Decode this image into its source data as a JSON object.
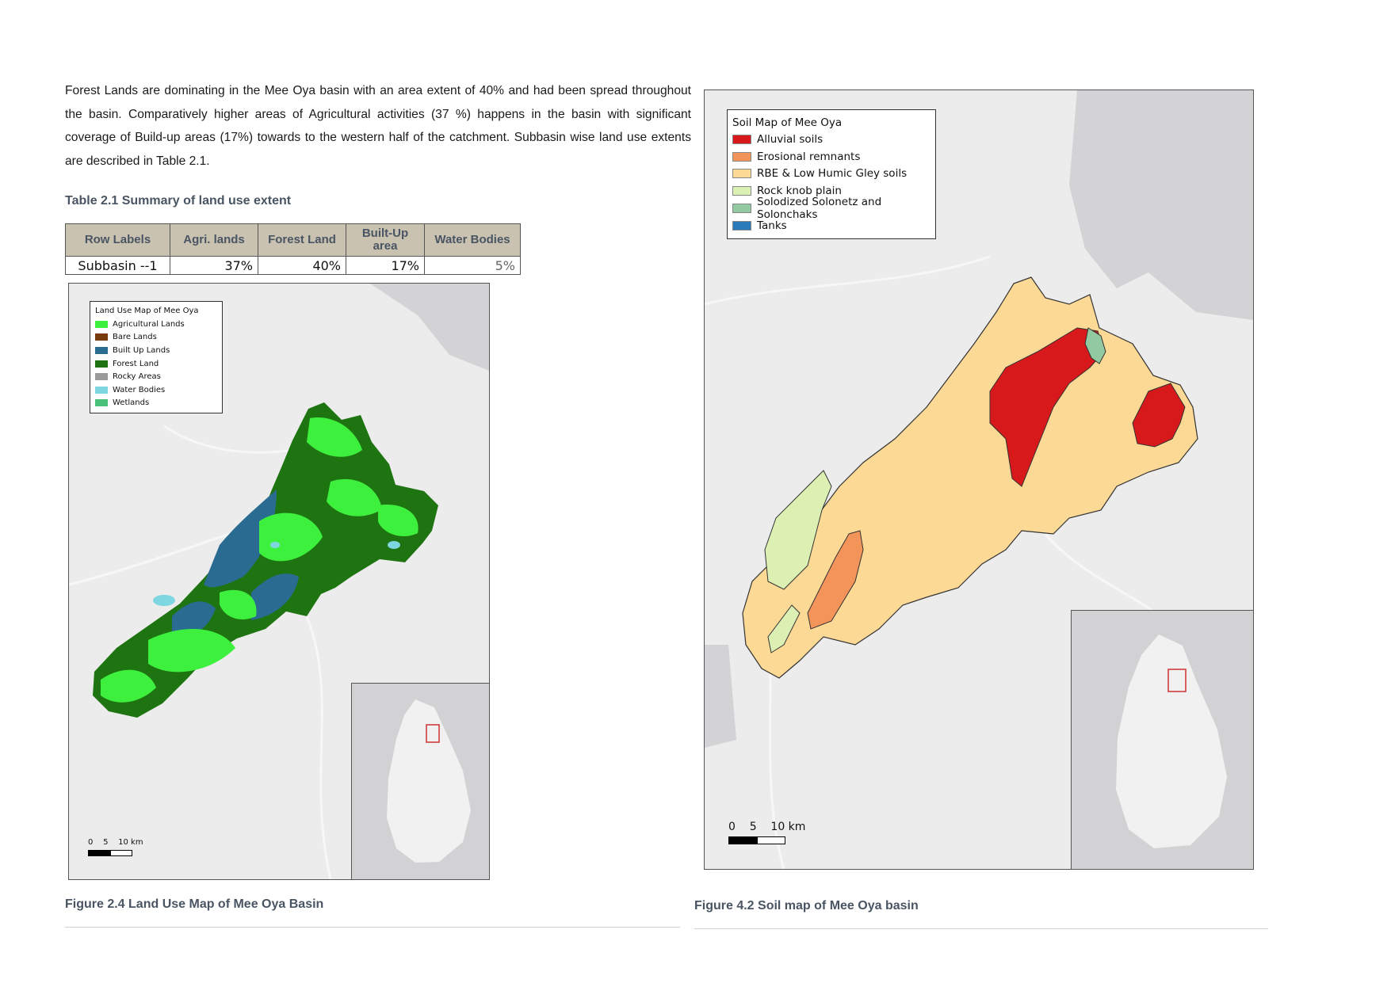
{
  "paragraph": "Forest Lands are dominating in the Mee Oya basin with an area extent of 40% and had been spread throughout the basin. Comparatively higher areas of Agricultural activities (37 %) happens in the basin with significant coverage of Build-up areas (17%) towards to the western half of the catchment. Subbasin wise land use extents are described in Table 2.1.",
  "table": {
    "caption": "Table 2.1 Summary of land use extent",
    "headers": [
      "Row Labels",
      "Agri. lands",
      "Forest Land",
      "Built-Up area",
      "Water Bodies"
    ],
    "rows": [
      [
        "Subbasin --1",
        "37%",
        "40%",
        "17%",
        "5%"
      ]
    ]
  },
  "landuse_map": {
    "legend_title": "Land Use Map of Mee Oya",
    "legend": [
      {
        "label": "Agricultural Lands",
        "color": "#3ef03e"
      },
      {
        "label": "Bare Lands",
        "color": "#7a3a10"
      },
      {
        "label": "Built Up Lands",
        "color": "#2a6b92"
      },
      {
        "label": "Forest Land",
        "color": "#1f7412"
      },
      {
        "label": "Rocky Areas",
        "color": "#9a9a9a"
      },
      {
        "label": "Water Bodies",
        "color": "#7dd6e0"
      },
      {
        "label": "Wetlands",
        "color": "#49c278"
      }
    ],
    "scale_label": "0    5    10 km",
    "caption": "Figure 2.4 Land Use Map of Mee Oya Basin"
  },
  "soil_map": {
    "legend_title": "Soil Map of Mee Oya",
    "legend": [
      {
        "label": "Alluvial soils",
        "color": "#d7191c"
      },
      {
        "label": "Erosional remnants",
        "color": "#f3945a"
      },
      {
        "label": "RBE & Low Humic Gley soils",
        "color": "#fdd996"
      },
      {
        "label": "Rock knob plain",
        "color": "#ddf0b4"
      },
      {
        "label": "Solodized Solonetz and Solonchaks",
        "color": "#92c9a0"
      },
      {
        "label": "Tanks",
        "color": "#2b7bba"
      }
    ],
    "scale_label": "0    5    10 km",
    "caption": "Figure 4.2 Soil map of Mee Oya basin"
  }
}
